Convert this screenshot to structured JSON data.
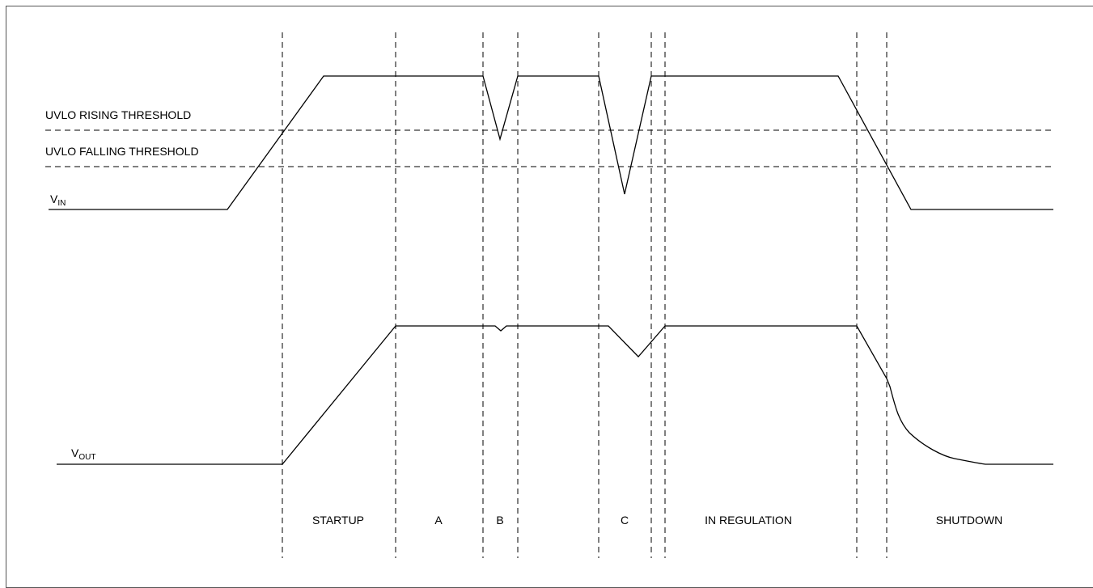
{
  "thresholds": {
    "uvlo_rising": "UVLO RISING THRESHOLD",
    "uvlo_falling": "UVLO FALLING THRESHOLD"
  },
  "signals": {
    "vin": {
      "main": "V",
      "sub": "IN"
    },
    "vout": {
      "main": "V",
      "sub": "OUT"
    }
  },
  "segments": [
    "STARTUP",
    "A",
    "B",
    "C",
    "IN REGULATION",
    "SHUTDOWN"
  ]
}
